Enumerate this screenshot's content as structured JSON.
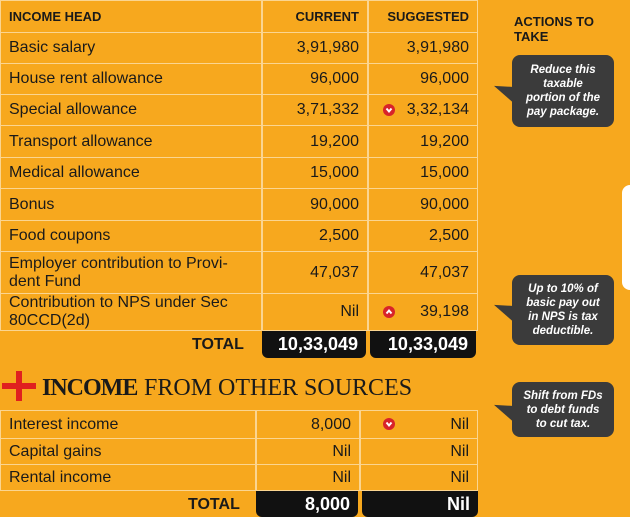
{
  "header": {
    "income_head": "INCOME HEAD",
    "current": "CURRENT",
    "suggested": "SUGGESTED",
    "actions": "ACTIONS TO TAKE"
  },
  "table": {
    "rows": [
      [
        "Basic salary",
        "3,91,980",
        "3,91,980"
      ],
      [
        "House rent allowance",
        "96,000",
        "96,000"
      ],
      [
        "Special allowance",
        "3,71,332",
        "3,32,134"
      ],
      [
        "Transport allowance",
        "19,200",
        "19,200"
      ],
      [
        "Medical allowance",
        "15,000",
        "15,000"
      ],
      [
        "Bonus",
        "90,000",
        "90,000"
      ],
      [
        "Food coupons",
        "2,500",
        "2,500"
      ],
      [
        "Employer contribution to Provi­dent Fund",
        "47,037",
        "47,037"
      ],
      [
        "Contribution to NPS under Sec 80CCD(2d)",
        "Nil",
        "39,198"
      ]
    ],
    "total": {
      "label": "TOTAL",
      "current": "10,33,049",
      "suggested": "10,33,049"
    }
  },
  "section2": {
    "title_bold": "INCOME",
    "title_rest": "FROM OTHER SOURCES",
    "rows": [
      [
        "Interest income",
        "8,000",
        "Nil"
      ],
      [
        "Capital gains",
        "Nil",
        "Nil"
      ],
      [
        "Rental income",
        "Nil",
        "Nil"
      ]
    ],
    "total": {
      "label": "TOTAL",
      "current": "8,000",
      "suggested": "Nil"
    }
  },
  "actions": [
    "Reduce this taxable portion of the pay package.",
    "Up to 10% of basic pay out in NPS is tax deductible.",
    "Shift from FDs to debt funds to cut tax."
  ]
}
